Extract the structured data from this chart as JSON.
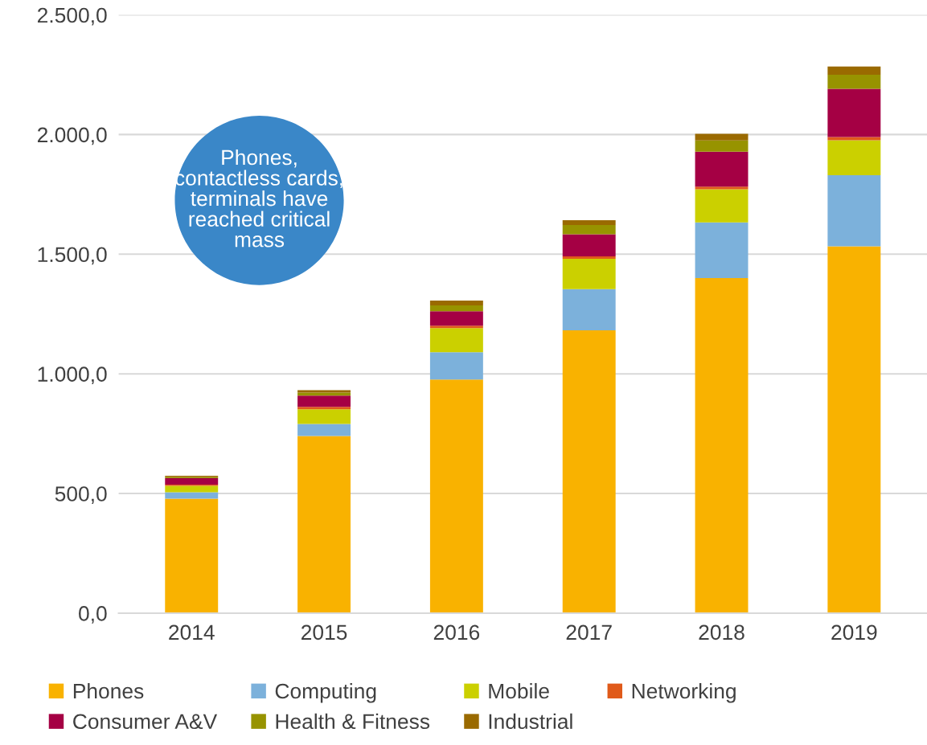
{
  "chart_data": {
    "type": "bar",
    "stacked": true,
    "categories": [
      "2014",
      "2015",
      "2016",
      "2017",
      "2018",
      "2019"
    ],
    "series": [
      {
        "name": "Phones",
        "color": "#f9b200",
        "values": [
          478,
          740,
          976,
          1182,
          1400,
          1533
        ]
      },
      {
        "name": "Computing",
        "color": "#7cb1db",
        "values": [
          27,
          51,
          114,
          172,
          233,
          297
        ]
      },
      {
        "name": "Mobile",
        "color": "#cbd000",
        "values": [
          27,
          61,
          101,
          127,
          138,
          146
        ]
      },
      {
        "name": "Networking",
        "color": "#e05a1a",
        "values": [
          5,
          10,
          10,
          10,
          11,
          14
        ]
      },
      {
        "name": "Consumer A&V",
        "color": "#a50044",
        "values": [
          27,
          47,
          61,
          92,
          146,
          201
        ]
      },
      {
        "name": "Health & Fitness",
        "color": "#979300",
        "values": [
          5,
          13,
          24,
          39,
          47,
          59
        ]
      },
      {
        "name": "Industrial",
        "color": "#9a6a00",
        "values": [
          5,
          10,
          20,
          20,
          28,
          34
        ]
      }
    ],
    "ylim": [
      0,
      2500
    ],
    "yticks": [
      {
        "value": 0,
        "label": "0,0"
      },
      {
        "value": 500,
        "label": "500,0"
      },
      {
        "value": 1000,
        "label": "1.000,0"
      },
      {
        "value": 1500,
        "label": "1.500,0"
      },
      {
        "value": 2000,
        "label": "2.000,0"
      },
      {
        "value": 2500,
        "label": "2.500,0"
      }
    ],
    "grid": "y",
    "legend": "bottom",
    "annotations": [
      "Phones,\ncontactless cards,\nterminals have\nreached critical\nmass"
    ]
  }
}
